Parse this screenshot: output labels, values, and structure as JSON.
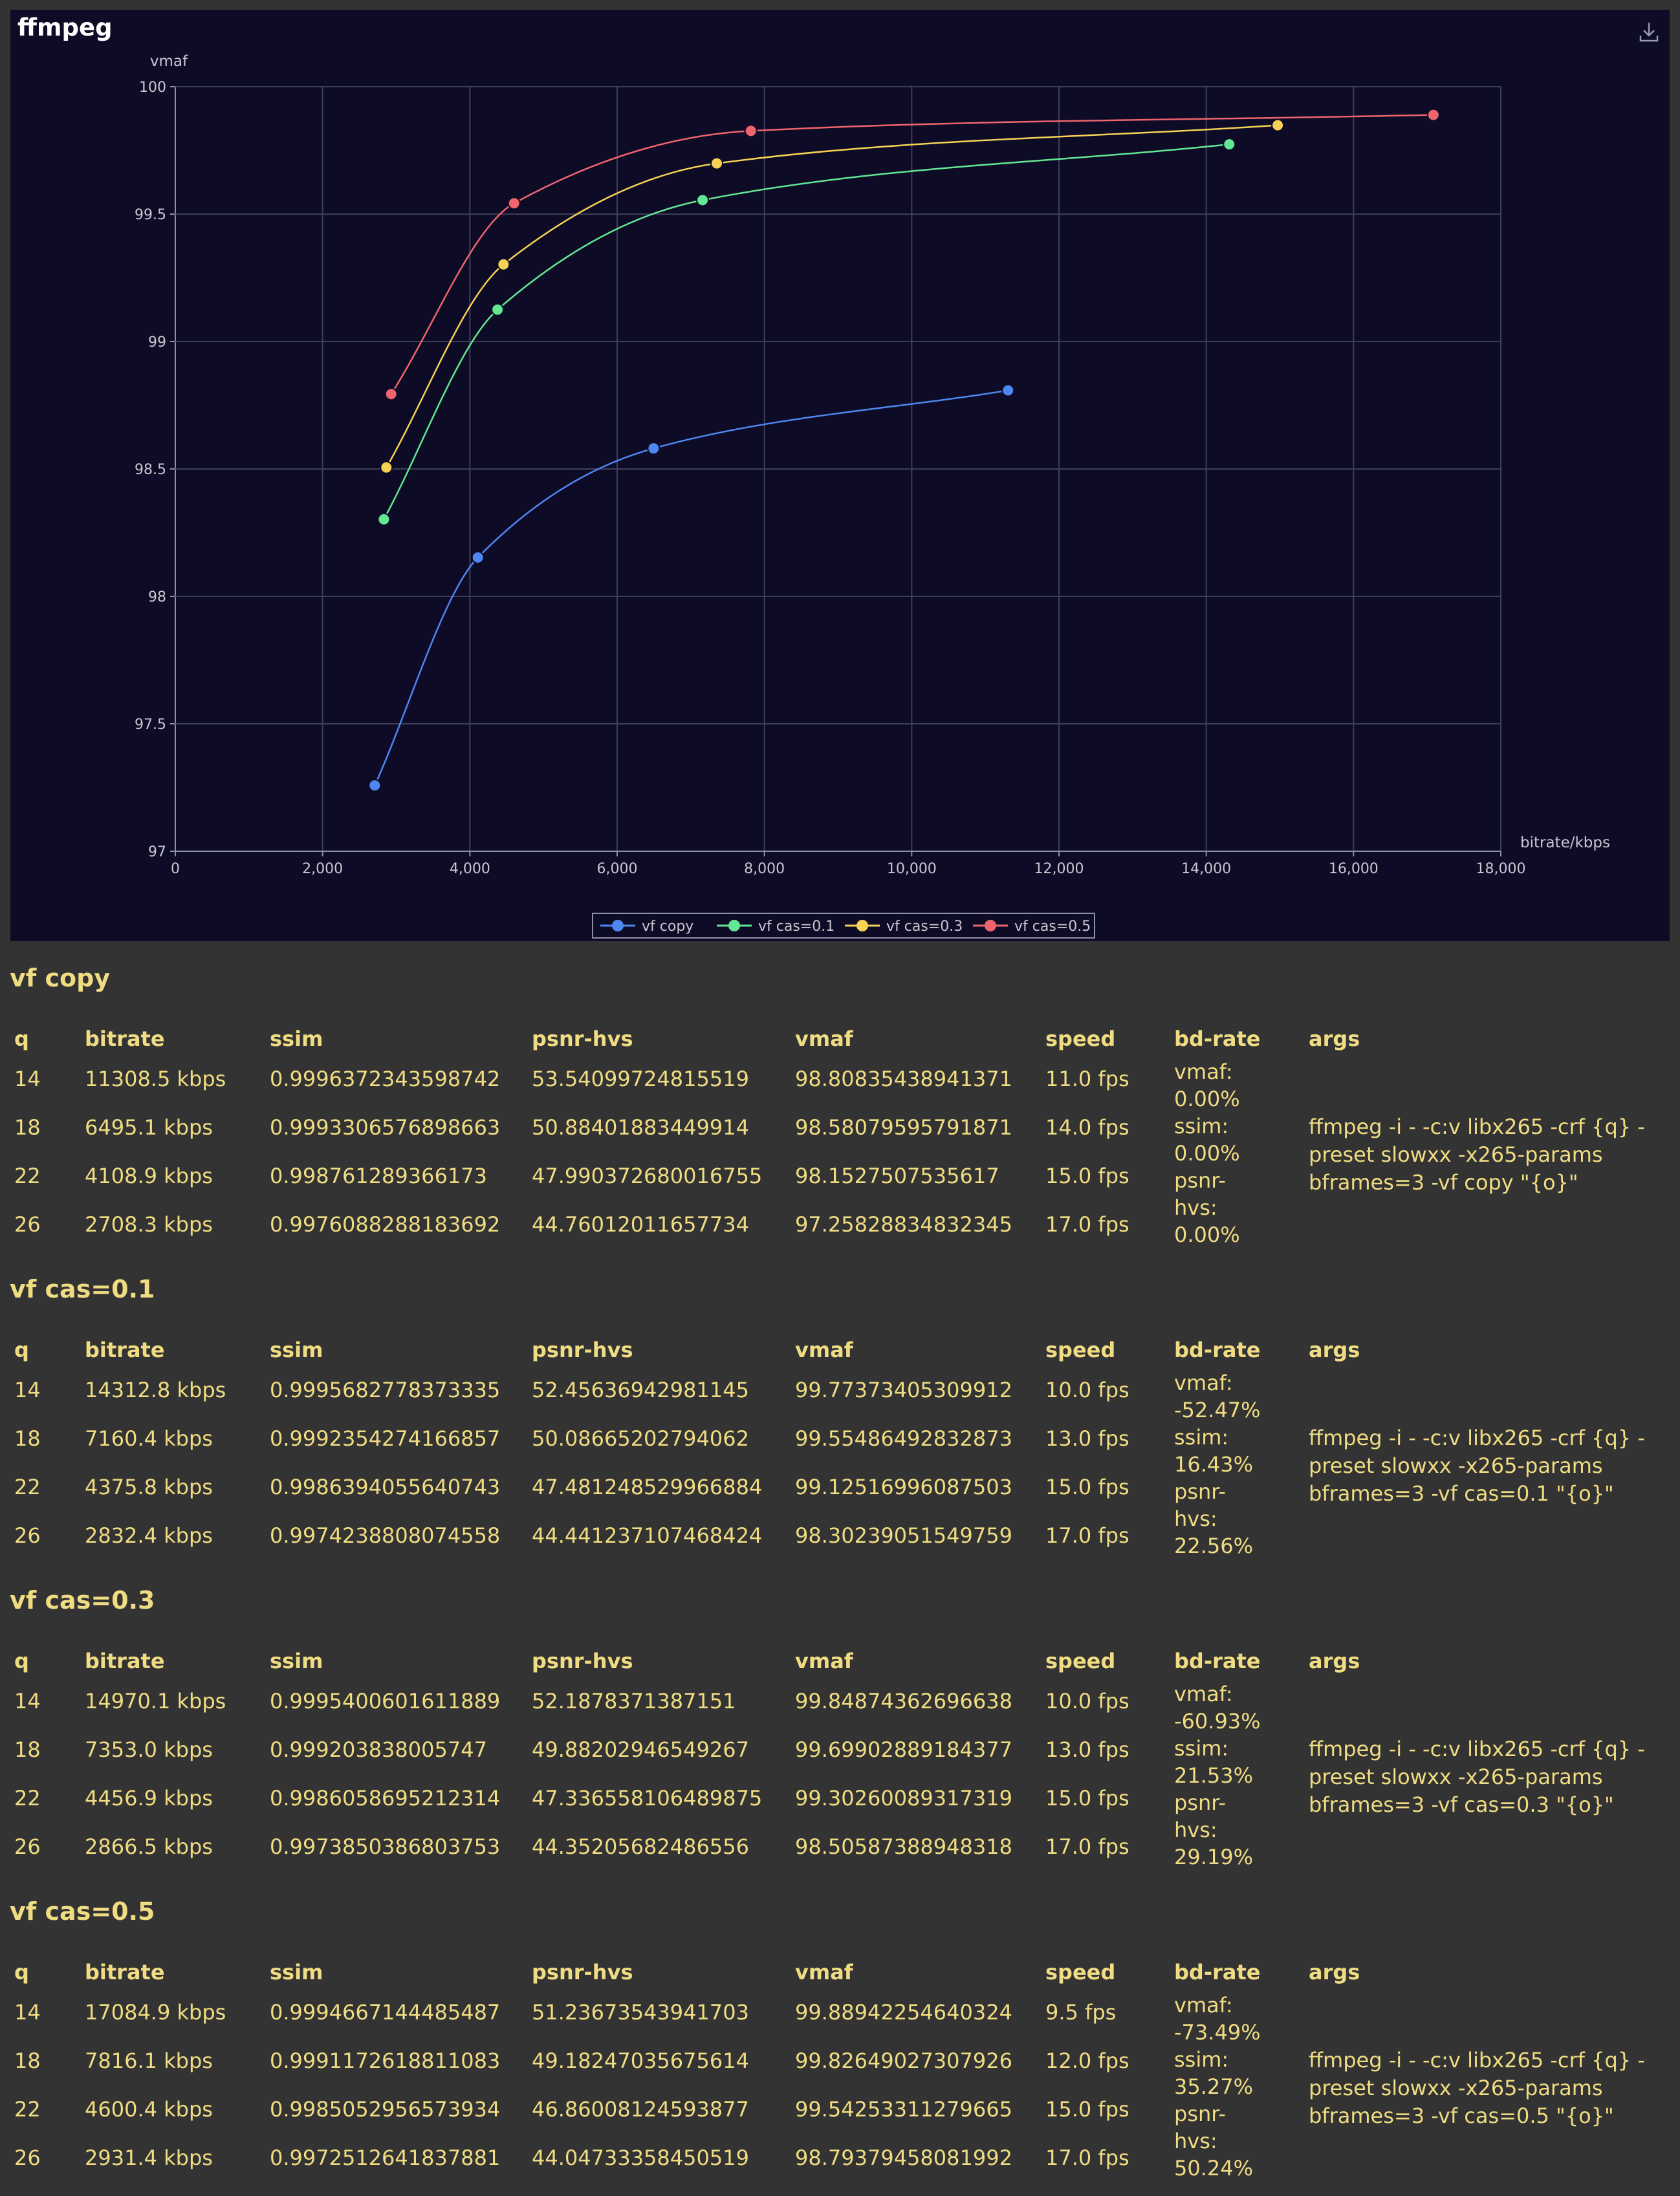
{
  "panel": {
    "title": "ffmpeg"
  },
  "chart_data": {
    "type": "line",
    "xlabel": "bitrate/kbps",
    "ylabel": "vmaf",
    "xlim": [
      0,
      18000
    ],
    "ylim": [
      97,
      100
    ],
    "x_ticks": [
      "0",
      "2,000",
      "4,000",
      "6,000",
      "8,000",
      "10,000",
      "12,000",
      "14,000",
      "16,000",
      "18,000"
    ],
    "y_ticks": [
      "97",
      "97.5",
      "98",
      "98.5",
      "99",
      "99.5",
      "100"
    ],
    "grid": true,
    "legend_position": "bottom-center",
    "series": [
      {
        "name": "vf copy",
        "color": "#4e87f1",
        "x": [
          2708.3,
          4108.9,
          6495.1,
          11308.5
        ],
        "y": [
          97.25828834832345,
          98.1527507535617,
          98.58079595791871,
          98.80835438941371
        ]
      },
      {
        "name": "vf cas=0.1",
        "color": "#62e792",
        "x": [
          2832.4,
          4375.8,
          7160.4,
          14312.8
        ],
        "y": [
          98.30239051549759,
          99.12516996087503,
          99.55486492832873,
          99.77373405309912
        ]
      },
      {
        "name": "vf cas=0.3",
        "color": "#f7d255",
        "x": [
          2866.5,
          4456.9,
          7353.0,
          14970.1
        ],
        "y": [
          98.50587388948318,
          99.30260089317319,
          99.69902889184377,
          99.84874362696638
        ]
      },
      {
        "name": "vf cas=0.5",
        "color": "#f0646e",
        "x": [
          2931.4,
          4600.4,
          7816.1,
          17084.9
        ],
        "y": [
          98.79379458081992,
          99.54253311279665,
          99.82649027307926,
          99.88942254640324
        ]
      }
    ]
  },
  "headers": [
    "q",
    "bitrate",
    "ssim",
    "psnr-hvs",
    "vmaf",
    "speed",
    "bd-rate",
    "args"
  ],
  "sections": [
    {
      "title": "vf copy",
      "rows": [
        [
          "14",
          "11308.5  kbps",
          "0.9996372343598742",
          "53.54099724815519",
          "98.80835438941371",
          "11.0  fps"
        ],
        [
          "18",
          "6495.1  kbps",
          "0.9993306576898663",
          "50.88401883449914",
          "98.58079595791871",
          "14.0  fps"
        ],
        [
          "22",
          "4108.9  kbps",
          "0.998761289366173",
          "47.990372680016755",
          "98.1527507535617",
          "15.0  fps"
        ],
        [
          "26",
          "2708.3  kbps",
          "0.9976088288183692",
          "44.76012011657734",
          "97.25828834832345",
          "17.0  fps"
        ]
      ],
      "bd_rate": "vmaf:\n0.00%\nssim:\n0.00%\npsnr-\nhvs:\n0.00%",
      "args": "ffmpeg -i - -c:v libx265 -crf {q} -preset slowxx -x265-params bframes=3 -vf copy \"{o}\""
    },
    {
      "title": "vf cas=0.1",
      "rows": [
        [
          "14",
          "14312.8  kbps",
          "0.9995682778373335",
          "52.45636942981145",
          "99.77373405309912",
          "10.0  fps"
        ],
        [
          "18",
          "7160.4  kbps",
          "0.9992354274166857",
          "50.08665202794062",
          "99.55486492832873",
          "13.0  fps"
        ],
        [
          "22",
          "4375.8  kbps",
          "0.9986394055640743",
          "47.481248529966884",
          "99.12516996087503",
          "15.0  fps"
        ],
        [
          "26",
          "2832.4  kbps",
          "0.9974238808074558",
          "44.441237107468424",
          "98.30239051549759",
          "17.0  fps"
        ]
      ],
      "bd_rate": "vmaf:\n-52.47%\nssim:\n16.43%\npsnr-\nhvs:\n22.56%",
      "args": "ffmpeg -i - -c:v libx265 -crf {q} -preset slowxx -x265-params bframes=3 -vf cas=0.1 \"{o}\""
    },
    {
      "title": "vf cas=0.3",
      "rows": [
        [
          "14",
          "14970.1  kbps",
          "0.9995400601611889",
          "52.1878371387151",
          "99.84874362696638",
          "10.0  fps"
        ],
        [
          "18",
          "7353.0  kbps",
          "0.999203838005747",
          "49.88202946549267",
          "99.69902889184377",
          "13.0  fps"
        ],
        [
          "22",
          "4456.9  kbps",
          "0.9986058695212314",
          "47.336558106489875",
          "99.30260089317319",
          "15.0  fps"
        ],
        [
          "26",
          "2866.5  kbps",
          "0.9973850386803753",
          "44.35205682486556",
          "98.50587388948318",
          "17.0  fps"
        ]
      ],
      "bd_rate": "vmaf:\n-60.93%\nssim:\n21.53%\npsnr-\nhvs:\n29.19%",
      "args": "ffmpeg -i - -c:v libx265 -crf {q} -preset slowxx -x265-params bframes=3 -vf cas=0.3 \"{o}\""
    },
    {
      "title": "vf cas=0.5",
      "rows": [
        [
          "14",
          "17084.9  kbps",
          "0.9994667144485487",
          "51.23673543941703",
          "99.88942254640324",
          "9.5  fps"
        ],
        [
          "18",
          "7816.1  kbps",
          "0.9991172618811083",
          "49.18247035675614",
          "99.82649027307926",
          "12.0  fps"
        ],
        [
          "22",
          "4600.4  kbps",
          "0.9985052956573934",
          "46.86008124593877",
          "99.54253311279665",
          "15.0  fps"
        ],
        [
          "26",
          "2931.4  kbps",
          "0.9972512641837881",
          "44.04733358450519",
          "98.79379458081992",
          "17.0  fps"
        ]
      ],
      "bd_rate": "vmaf:\n-73.49%\nssim:\n35.27%\npsnr-\nhvs:\n50.24%",
      "args": "ffmpeg -i - -c:v libx265 -crf {q} -preset slowxx -x265-params bframes=3 -vf cas=0.5 \"{o}\""
    }
  ]
}
